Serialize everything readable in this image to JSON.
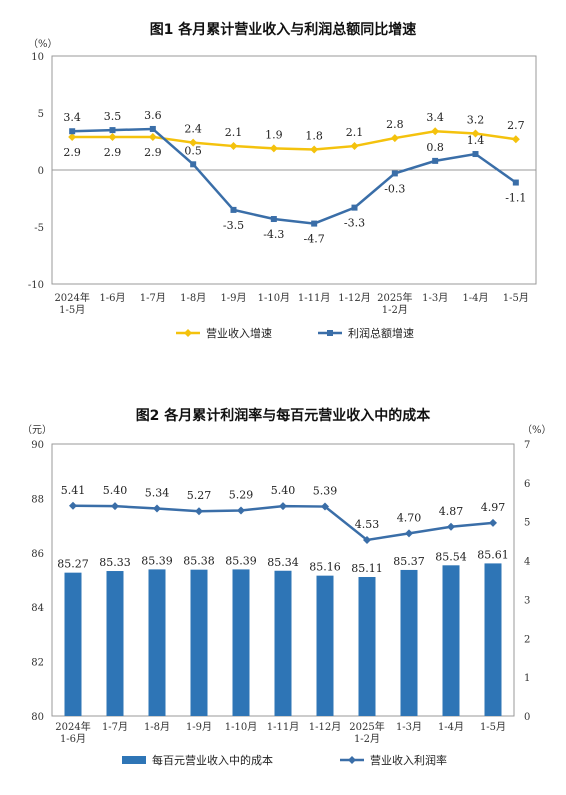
{
  "chart_data": [
    {
      "type": "line",
      "title": "图1  各月累计营业收入与利润总额同比增速",
      "y_unit": "（%）",
      "ylim": [
        -10,
        10
      ],
      "yticks": [
        "10",
        "5",
        "0",
        "-5",
        "-10"
      ],
      "categories": [
        [
          "2024年",
          "1-5月"
        ],
        [
          "1-6月"
        ],
        [
          "1-7月"
        ],
        [
          "1-8月"
        ],
        [
          "1-9月"
        ],
        [
          "1-10月"
        ],
        [
          "1-11月"
        ],
        [
          "1-12月"
        ],
        [
          "2025年",
          "1-2月"
        ],
        [
          "1-3月"
        ],
        [
          "1-4月"
        ],
        [
          "1-5月"
        ]
      ],
      "series": [
        {
          "name": "营业收入增速",
          "color": "#f4c20d",
          "values": [
            2.9,
            2.9,
            2.9,
            2.4,
            2.1,
            1.9,
            1.8,
            2.1,
            2.8,
            3.4,
            3.2,
            2.7
          ],
          "labels": [
            "2.9",
            "2.9",
            "2.9",
            "2.4",
            "2.1",
            "1.9",
            "1.8",
            "2.1",
            "2.8",
            "3.4",
            "3.2",
            "2.7"
          ]
        },
        {
          "name": "利润总额增速",
          "color": "#3a6ea8",
          "values": [
            3.4,
            3.5,
            3.6,
            0.5,
            -3.5,
            -4.3,
            -4.7,
            -3.3,
            -0.3,
            0.8,
            1.4,
            -1.1
          ],
          "labels": [
            "3.4",
            "3.5",
            "3.6",
            "0.5",
            "-3.5",
            "-4.3",
            "-4.7",
            "-3.3",
            "-0.3",
            "0.8",
            "1.4",
            "-1.1"
          ]
        }
      ],
      "grid": false,
      "legend": "bottom"
    },
    {
      "type": "bar",
      "title": "图2  各月累计利润率与每百元营业收入中的成本",
      "y_unit_left": "（元）",
      "y_unit_right": "（%）",
      "ylim_left": [
        80,
        90
      ],
      "ylim_right": [
        0,
        7
      ],
      "yticks_left": [
        "90",
        "88",
        "86",
        "84",
        "82",
        "80"
      ],
      "yticks_right": [
        "7",
        "6",
        "5",
        "4",
        "3",
        "2",
        "1",
        "0"
      ],
      "categories": [
        [
          "2024年",
          "1-6月"
        ],
        [
          "1-7月"
        ],
        [
          "1-8月"
        ],
        [
          "1-9月"
        ],
        [
          "1-10月"
        ],
        [
          "1-11月"
        ],
        [
          "1-12月"
        ],
        [
          "2025年",
          "1-2月"
        ],
        [
          "1-3月"
        ],
        [
          "1-4月"
        ],
        [
          "1-5月"
        ]
      ],
      "bar_series": {
        "name": "每百元营业收入中的成本",
        "color": "#2e75b6",
        "values": [
          85.27,
          85.33,
          85.39,
          85.38,
          85.39,
          85.34,
          85.16,
          85.11,
          85.37,
          85.54,
          85.61
        ],
        "labels": [
          "85.27",
          "85.33",
          "85.39",
          "85.38",
          "85.39",
          "85.34",
          "85.16",
          "85.11",
          "85.37",
          "85.54",
          "85.61"
        ]
      },
      "line_series": {
        "name": "营业收入利润率",
        "color": "#3a6ea8",
        "values": [
          5.41,
          5.4,
          5.34,
          5.27,
          5.29,
          5.4,
          5.39,
          4.53,
          4.7,
          4.87,
          4.97
        ],
        "labels": [
          "5.41",
          "5.40",
          "5.34",
          "5.27",
          "5.29",
          "5.40",
          "5.39",
          "4.53",
          "4.70",
          "4.87",
          "4.97"
        ]
      },
      "grid": false,
      "legend": "bottom"
    }
  ]
}
